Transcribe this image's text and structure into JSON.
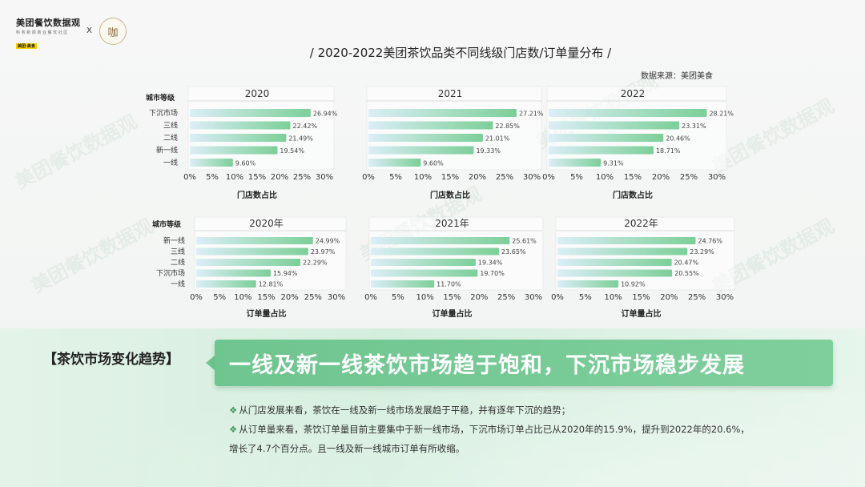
{
  "header": {
    "logo_main": "美团餐饮数据观",
    "logo_sub": "科 务 新 闻 商 业 餐 饮 社 区",
    "logo_tag": "美团·美食",
    "x_mark": "X",
    "partner_logo": "咖"
  },
  "title": "/ 2020-2022美团茶饮品类不同线级门店数/订单量分布 /",
  "source": "数据来源：美团美食",
  "watermark_text": "美团餐饮数据观",
  "colors": {
    "bar_start": "#dbeef7",
    "bar_end": "#7ccf98",
    "banner": "#6fc58f",
    "accent": "#4a9a66"
  },
  "chart_data": [
    {
      "type": "bar",
      "group": "store",
      "header_label": "城市等级",
      "xlabel": "门店数占比",
      "categories": [
        "下沉市场",
        "三线",
        "二线",
        "新一线",
        "一线"
      ],
      "xlim": [
        0,
        30
      ],
      "ticks": [
        "0%",
        "5%",
        "10%",
        "15%",
        "20%",
        "25%",
        "30%"
      ],
      "series": [
        {
          "name": "2020",
          "values": [
            26.94,
            22.42,
            21.49,
            19.54,
            9.6
          ],
          "labels": [
            "26.94%",
            "22.42%",
            "21.49%",
            "19.54%",
            "9.60%"
          ]
        },
        {
          "name": "2021",
          "values": [
            27.21,
            22.85,
            21.01,
            19.33,
            9.6
          ],
          "labels": [
            "27.21%",
            "22.85%",
            "21.01%",
            "19.33%",
            "9.60%"
          ]
        },
        {
          "name": "2022",
          "values": [
            28.21,
            23.31,
            20.46,
            18.71,
            9.31
          ],
          "labels": [
            "28.21%",
            "23.31%",
            "20.46%",
            "18.71%",
            "9.31%"
          ]
        }
      ]
    },
    {
      "type": "bar",
      "group": "order",
      "header_label": "城市等级",
      "xlabel": "订单量占比",
      "categories": [
        "新一线",
        "三线",
        "二线",
        "下沉市场",
        "一线"
      ],
      "xlim": [
        0,
        30
      ],
      "ticks": [
        "0%",
        "5%",
        "10%",
        "15%",
        "20%",
        "25%",
        "30%"
      ],
      "series": [
        {
          "name": "2020年",
          "values": [
            24.99,
            23.97,
            22.29,
            15.94,
            12.81
          ],
          "labels": [
            "24.99%",
            "23.97%",
            "22.29%",
            "15.94%",
            "12.81%"
          ]
        },
        {
          "name": "2021年",
          "values": [
            25.61,
            23.65,
            19.34,
            19.7,
            11.7
          ],
          "labels": [
            "25.61%",
            "23.65%",
            "19.34%",
            "19.70%",
            "11.70%"
          ]
        },
        {
          "name": "2022年",
          "values": [
            24.76,
            23.29,
            20.47,
            20.55,
            10.92
          ],
          "labels": [
            "24.76%",
            "23.29%",
            "20.47%",
            "20.55%",
            "10.92%"
          ]
        }
      ]
    }
  ],
  "summary": {
    "trend_label": "【茶饮市场变化趋势】",
    "banner": "一线及新一线茶饮市场趋于饱和，下沉市场稳步发展",
    "bullets": [
      "从门店发展来看，茶饮在一线及新一线市场发展趋于平稳，并有逐年下沉的趋势；",
      "从订单量来看，茶饮订单量目前主要集中于新一线市场，下沉市场订单占比已从2020年的15.9%，提升到2022年的20.6%，",
      "增长了4.7个百分点。且一线及新一线城市订单有所收缩。"
    ],
    "bullet_mark": "❖"
  }
}
